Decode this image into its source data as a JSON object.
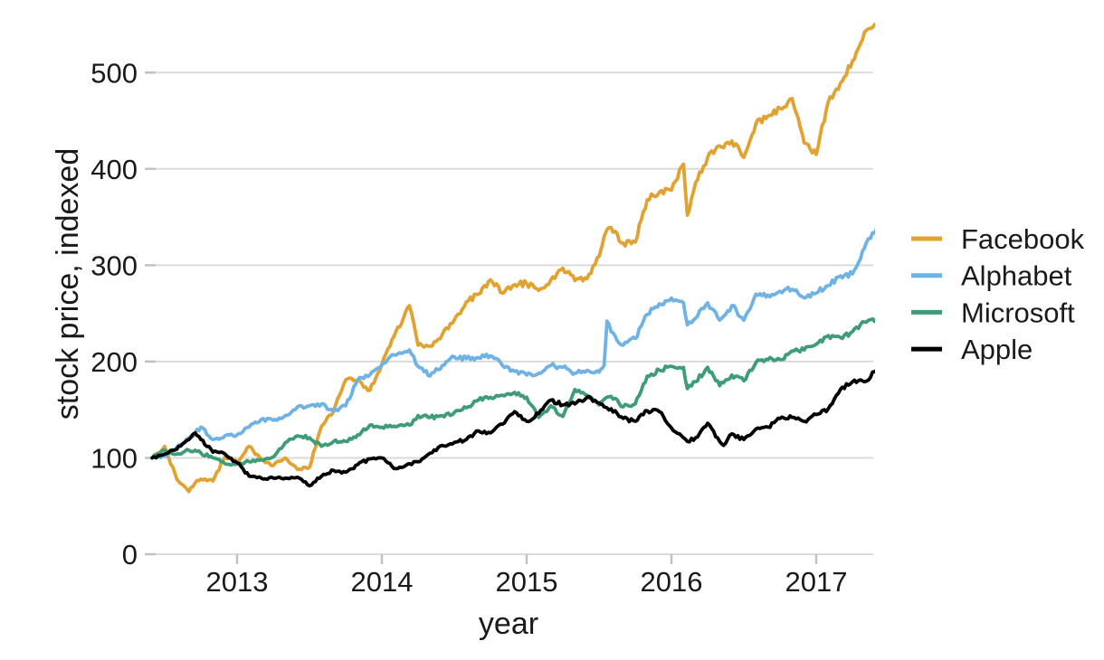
{
  "chart_data": {
    "type": "line",
    "title": "",
    "xlabel": "year",
    "ylabel": "stock price, indexed",
    "xlim": [
      2012.4,
      2017.43
    ],
    "ylim": [
      0,
      560
    ],
    "xticks": [
      2013,
      2014,
      2015,
      2016,
      2017
    ],
    "yticks": [
      0,
      100,
      200,
      300,
      400,
      500
    ],
    "grid": true,
    "legend_position": "right-center",
    "colors": {
      "facebook": "#E0A331",
      "alphabet": "#6FB2E4",
      "microsoft": "#3E9C76",
      "apple": "#000000",
      "gridline": "#DBDBDB",
      "tick": "#C2C2C2",
      "text": "#1A1A1A",
      "background": "#FFFFFF"
    },
    "x": [
      2012.413,
      2012.5,
      2012.583,
      2012.667,
      2012.71,
      2012.75,
      2012.833,
      2012.917,
      2013.0,
      2013.083,
      2013.167,
      2013.25,
      2013.333,
      2013.417,
      2013.5,
      2013.583,
      2013.667,
      2013.75,
      2013.833,
      2013.917,
      2014.0,
      2014.083,
      2014.19,
      2014.25,
      2014.333,
      2014.417,
      2014.5,
      2014.583,
      2014.667,
      2014.75,
      2014.833,
      2014.917,
      2015.0,
      2015.083,
      2015.167,
      2015.25,
      2015.333,
      2015.417,
      2015.5,
      2015.535,
      2015.555,
      2015.583,
      2015.667,
      2015.75,
      2015.833,
      2015.917,
      2016.0,
      2016.083,
      2016.11,
      2016.167,
      2016.25,
      2016.333,
      2016.36,
      2016.417,
      2016.5,
      2016.583,
      2016.667,
      2016.75,
      2016.833,
      2016.917,
      2017.0,
      2017.083,
      2017.167,
      2017.25,
      2017.333,
      2017.417
    ],
    "series": [
      {
        "name": "Facebook",
        "color": "#E0A331",
        "values": [
          100,
          112,
          78,
          65,
          74,
          78,
          76,
          101,
          96,
          112,
          98,
          92,
          100,
          88,
          90,
          133,
          149,
          181,
          181,
          170,
          197,
          226,
          258,
          217,
          216,
          228,
          243,
          262,
          270,
          285,
          271,
          280,
          281,
          274,
          285,
          297,
          284,
          286,
          309,
          330,
          337,
          339,
          323,
          324,
          368,
          376,
          378,
          405,
          352,
          386,
          412,
          424,
          422,
          429,
          412,
          447,
          455,
          463,
          473,
          427,
          415,
          470,
          489,
          512,
          542,
          548
        ]
      },
      {
        "name": "Alphabet",
        "color": "#6FB2E4",
        "values": [
          100,
          102,
          111,
          120,
          126,
          132,
          119,
          123,
          124,
          132,
          140,
          139,
          144,
          153,
          154,
          156,
          148,
          154,
          181,
          186,
          197,
          207,
          212,
          195,
          185,
          196,
          205,
          203,
          204,
          206,
          196,
          190,
          186,
          188,
          196,
          194,
          188,
          191,
          189,
          196,
          242,
          231,
          217,
          224,
          249,
          260,
          266,
          261,
          238,
          245,
          261,
          243,
          247,
          258,
          243,
          270,
          269,
          273,
          275,
          266,
          271,
          279,
          289,
          291,
          318,
          338
        ]
      },
      {
        "name": "Microsoft",
        "color": "#3E9C76",
        "values": [
          100,
          108,
          104,
          108,
          108,
          105,
          100,
          94,
          94,
          96,
          98,
          101,
          116,
          123,
          121,
          112,
          117,
          117,
          124,
          134,
          132,
          133,
          134,
          144,
          142,
          144,
          147,
          152,
          160,
          163,
          165,
          168,
          163,
          142,
          154,
          143,
          171,
          165,
          155,
          161,
          163,
          164,
          153,
          156,
          185,
          191,
          195,
          194,
          172,
          179,
          194,
          175,
          178,
          186,
          180,
          199,
          202,
          202,
          211,
          212,
          218,
          227,
          225,
          231,
          241,
          245
        ]
      },
      {
        "name": "Apple",
        "color": "#000000",
        "values": [
          100,
          104,
          109,
          119,
          126,
          119,
          106,
          104,
          95,
          81,
          79,
          79,
          79,
          80,
          71,
          81,
          87,
          85,
          93,
          99,
          100,
          89,
          94,
          96,
          105,
          113,
          116,
          119,
          128,
          126,
          135,
          148,
          138,
          146,
          160,
          155,
          156,
          163,
          157,
          153,
          152,
          151,
          141,
          138,
          149,
          148,
          131,
          121,
          117,
          121,
          136,
          117,
          113,
          125,
          119,
          130,
          132,
          141,
          142,
          138,
          145,
          151,
          171,
          179,
          179,
          191
        ]
      }
    ]
  }
}
